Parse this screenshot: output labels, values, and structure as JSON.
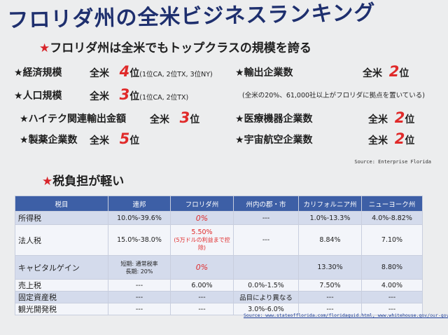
{
  "title": "フロリダ州の全米ビジネスランキング",
  "subtitle": "フロリダ州は全米でもトップクラスの規模を誇る",
  "star": "★",
  "rankings_left": [
    {
      "label": "経済規模",
      "scope": "全米",
      "rank": "4",
      "suffix": "位",
      "note": "(1位CA, 2位TX, 3位NY)"
    },
    {
      "label": "人口規模",
      "scope": "全米",
      "rank": "3",
      "suffix": "位",
      "note": "(1位CA, 2位TX)"
    },
    {
      "label": "ハイテク関連輸出金額",
      "scope": "全米",
      "rank": "3",
      "suffix": "位",
      "note": ""
    },
    {
      "label": "製薬企業数",
      "scope": "全米",
      "rank": "5",
      "suffix": "位",
      "note": ""
    }
  ],
  "rankings_right": [
    {
      "label": "輸出企業数",
      "scope": "全米",
      "rank": "2",
      "suffix": "位"
    },
    {
      "label": "医療機器企業数",
      "scope": "全米",
      "rank": "2",
      "suffix": "位"
    },
    {
      "label": "宇宙航空企業数",
      "scope": "全米",
      "rank": "2",
      "suffix": "位"
    }
  ],
  "export_note": "(全米の20%、61,000社以上がフロリダに拠点を置いている)",
  "source1": "Source: Enterprise Florida",
  "tax_heading": "税負担が軽い",
  "table": {
    "headers": [
      "税目",
      "連邦",
      "フロリダ州",
      "州内の郡・市",
      "カリフォルニア州",
      "ニューヨーク州"
    ],
    "rows": [
      {
        "label": "所得税",
        "federal": "10.0%-39.6%",
        "florida": "0%",
        "county": "---",
        "ca": "1.0%-13.3%",
        "ny": "4.0%-8.82%"
      },
      {
        "label": "法人税",
        "federal": "15.0%-38.0%",
        "florida": "5.50%",
        "florida_note": "(5万ドルの利益まで控除)",
        "county": "---",
        "ca": "8.84%",
        "ny": "7.10%"
      },
      {
        "label": "キャピタルゲイン",
        "federal": "短期: 通常税率",
        "federal2": "長期: 20%",
        "florida": "0%",
        "county": "",
        "ca": "13.30%",
        "ny": "8.80%"
      },
      {
        "label": "売上税",
        "federal": "---",
        "florida": "6.00%",
        "county": "0.0%-1.5%",
        "ca": "7.50%",
        "ny": "4.00%"
      },
      {
        "label": "固定資産税",
        "federal": "---",
        "florida": "---",
        "county": "品目により異なる",
        "ca": "---",
        "ny": "---"
      },
      {
        "label": "観光開発税",
        "federal": "---",
        "florida": "---",
        "county": "3.0%-6.0%",
        "ca": "---",
        "ny": "---"
      }
    ]
  },
  "source2": "Source: www.stateofflorida.com/floridaguid.html, www.whitehouse.gov/our-government"
}
